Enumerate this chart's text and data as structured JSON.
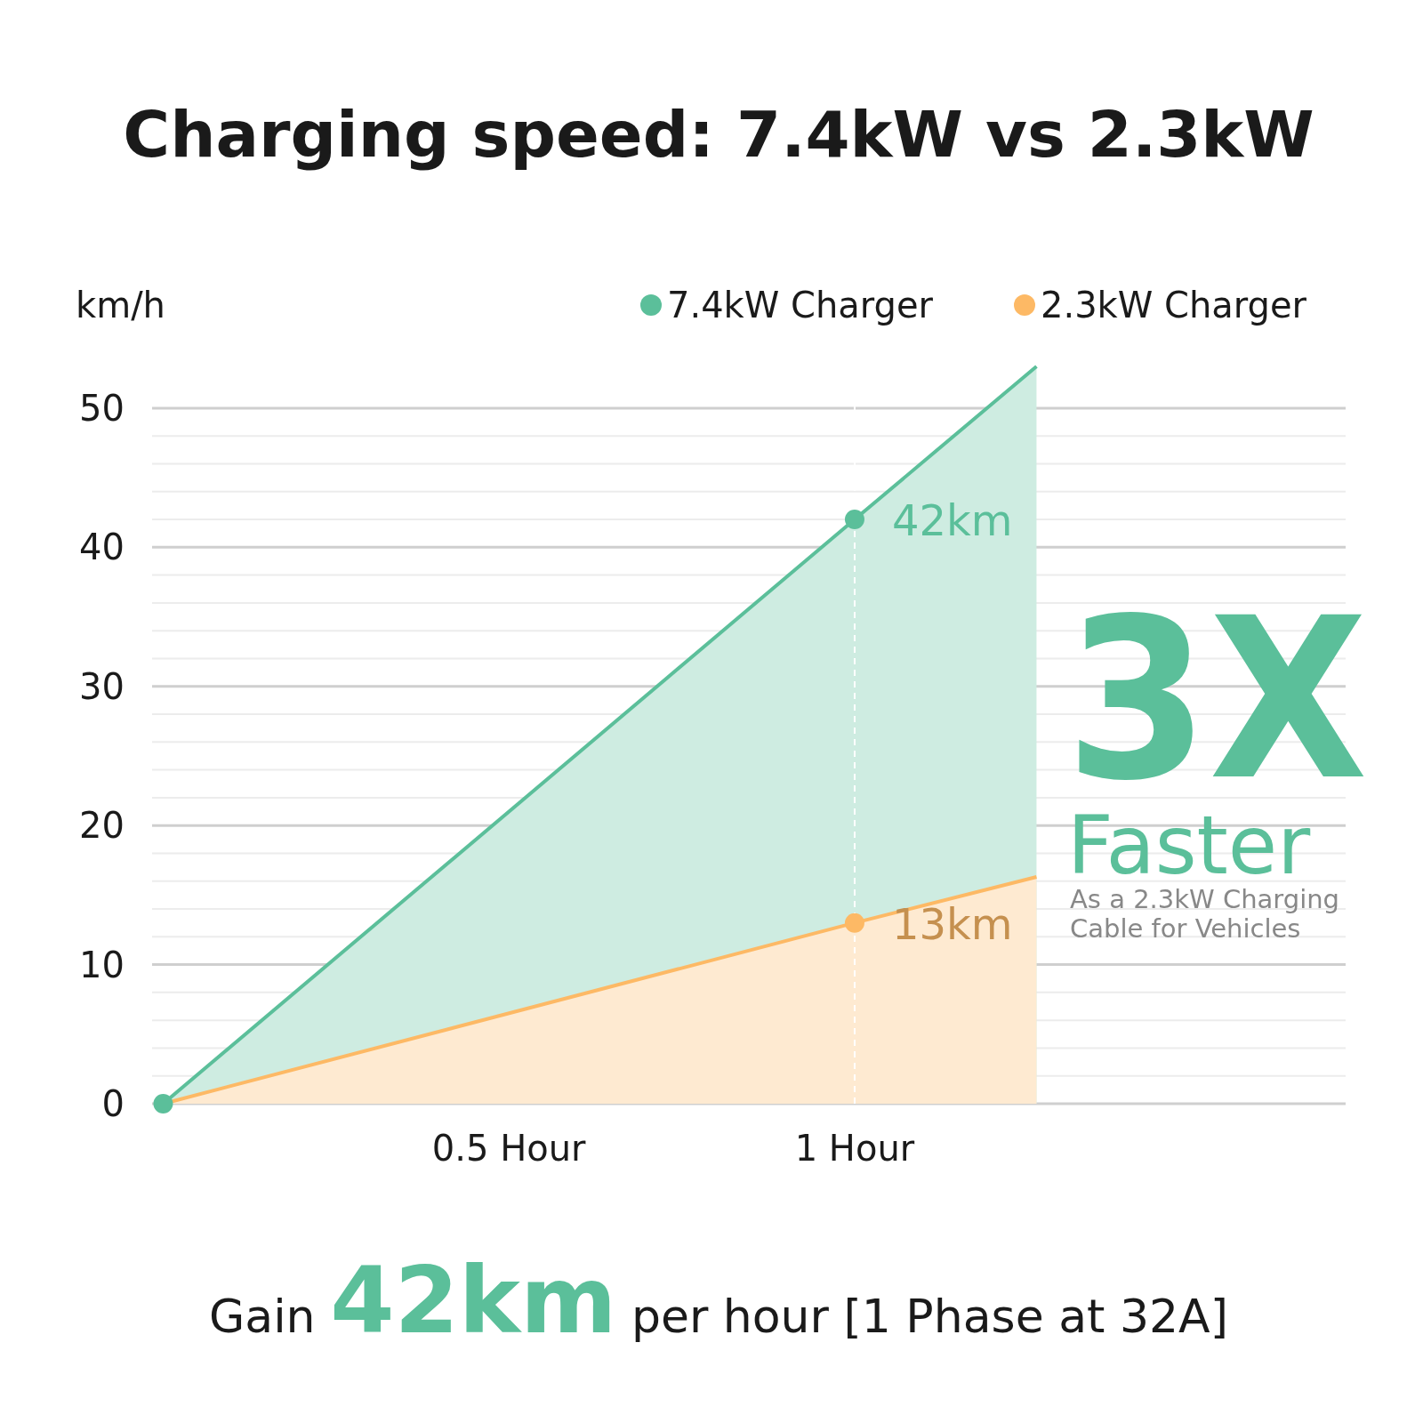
{
  "chart_data": {
    "type": "area",
    "title": "Charging speed: 7.4kW vs 2.3kW",
    "ylabel": "km/h",
    "xlim": [
      -0.016,
      1.71
    ],
    "xticks": [
      {
        "value": 0.5,
        "label": "0.5 Hour"
      },
      {
        "value": 1,
        "label": "1 Hour"
      }
    ],
    "ylim": [
      0,
      53
    ],
    "yticks": [
      0,
      {
        "value": 2,
        "label": null
      },
      {
        "value": 4,
        "label": null
      },
      {
        "value": 6,
        "label": null
      },
      {
        "value": 8,
        "label": null
      },
      10,
      {
        "value": 12,
        "label": null
      },
      {
        "value": 14,
        "label": null
      },
      {
        "value": 16,
        "label": null
      },
      {
        "value": 18,
        "label": null
      },
      20,
      {
        "value": 22,
        "label": null
      },
      {
        "value": 24,
        "label": null
      },
      {
        "value": 26,
        "label": null
      },
      {
        "value": 28,
        "label": null
      },
      30,
      {
        "value": 32,
        "label": null
      },
      {
        "value": 34,
        "label": null
      },
      {
        "value": 36,
        "label": null
      },
      {
        "value": 38,
        "label": null
      },
      40,
      {
        "value": 42,
        "label": null
      },
      {
        "value": 44,
        "label": null
      },
      {
        "value": 46,
        "label": null
      },
      {
        "value": 48,
        "label": null
      },
      50
    ],
    "grid": "y",
    "legend": "top right",
    "series": [
      {
        "name": "7.4kW Charger",
        "color": "#5bbf9a",
        "x": [
          0,
          1,
          1.263
        ],
        "values": [
          0,
          42,
          53
        ]
      },
      {
        "name": "2.3kW Charger",
        "color": "#fdb965",
        "x": [
          0,
          1,
          1.263
        ],
        "values": [
          0,
          13,
          16.3
        ]
      },
      {
        "type": "scatter",
        "color": "#5bbf9a",
        "x": [
          0,
          1
        ],
        "values": [
          0,
          42
        ]
      },
      {
        "type": "scatter",
        "color": "#fdb965",
        "x": [
          1
        ],
        "values": [
          13
        ]
      }
    ],
    "ref_lines": [
      {
        "axis": "x",
        "value": 1,
        "color": "#ffffff",
        "line_style": "dashed"
      }
    ],
    "annotations": [
      {
        "text": "42km",
        "x": 1,
        "y": 42
      },
      {
        "text": "13km",
        "x": 1,
        "y": 13
      },
      "3X",
      "Faster",
      "As a 2.3kW Charging Cable for Vehicles",
      "Gain",
      "42km",
      "per hour [1 Phase at 32A]"
    ]
  }
}
